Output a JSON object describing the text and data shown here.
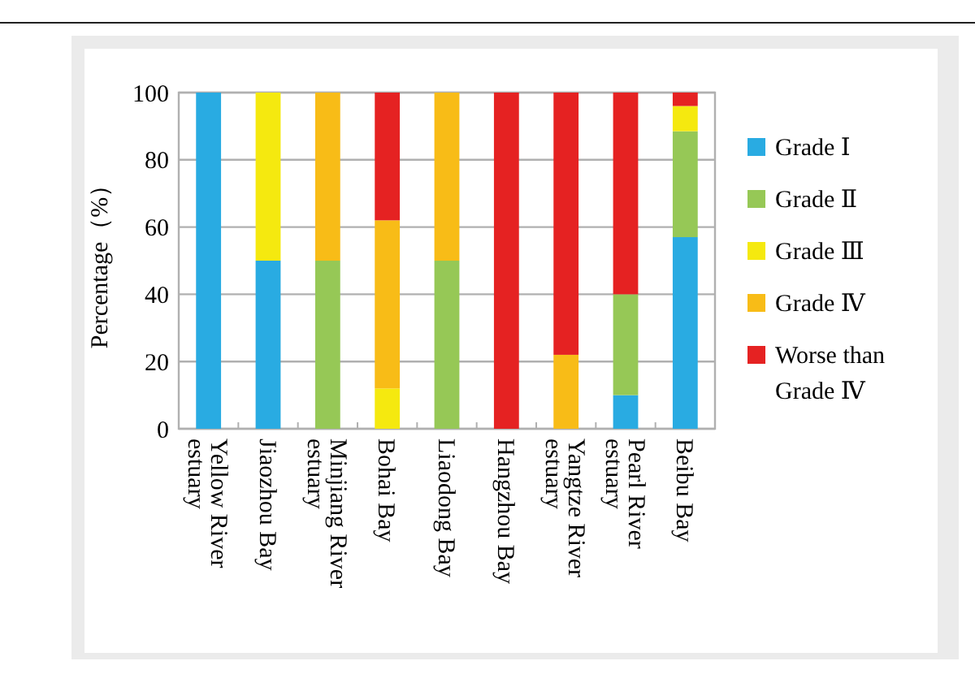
{
  "chart_data": {
    "type": "bar",
    "stacked": true,
    "ylabel": "Percentage（%）",
    "categories": [
      "Yellow River estuary",
      "Jiaozhou Bay",
      "Minjiang River estuary",
      "Bohai Bay",
      "Liaodong Bay",
      "Hangzhou Bay",
      "Yangtze River estuary",
      "Pearl River estuary",
      "Beibu Bay"
    ],
    "series": [
      {
        "name": "Grade Ⅰ",
        "color": "#29abe2",
        "values": [
          100,
          50,
          0,
          0,
          0,
          0,
          0,
          10,
          57
        ]
      },
      {
        "name": "Grade Ⅱ",
        "color": "#96c856",
        "values": [
          0,
          0,
          50,
          0,
          50,
          0,
          0,
          30,
          31.5
        ]
      },
      {
        "name": "Grade Ⅲ",
        "color": "#f5e90f",
        "values": [
          0,
          50,
          0,
          12,
          0,
          0,
          0,
          0,
          7.5
        ]
      },
      {
        "name": "Grade Ⅳ",
        "color": "#f8bc17",
        "values": [
          0,
          0,
          50,
          50,
          50,
          0,
          22,
          0,
          0
        ]
      },
      {
        "name": "Worse than Grade Ⅳ",
        "color": "#e52222",
        "values": [
          0,
          0,
          0,
          38,
          0,
          100,
          78,
          60,
          4
        ]
      }
    ],
    "ylim": [
      0,
      100
    ],
    "yticks": [
      0,
      20,
      40,
      60,
      80,
      100
    ],
    "grid": "y",
    "legend": "right"
  }
}
